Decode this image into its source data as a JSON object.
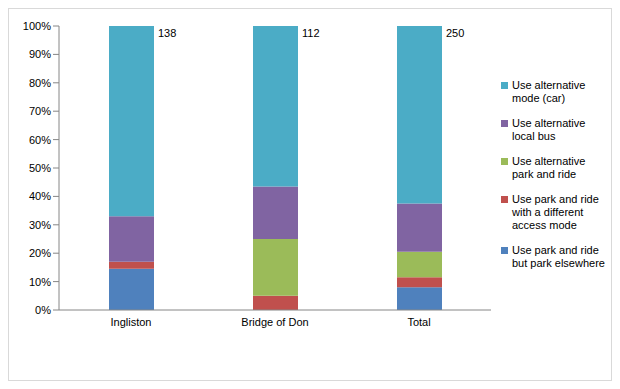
{
  "chart_data": {
    "type": "bar",
    "stacked": true,
    "categories": [
      "Ingliston",
      "Bridge of Don",
      "Total"
    ],
    "sample_sizes": [
      138,
      112,
      250
    ],
    "series": [
      {
        "name": "Use park and ride but park elsewhere",
        "color": "#4f81bd",
        "values": [
          14.5,
          0,
          8
        ]
      },
      {
        "name": "Use park and ride with a different access mode",
        "color": "#c0504d",
        "values": [
          2.5,
          5,
          3.5
        ]
      },
      {
        "name": "Use alternative park and ride",
        "color": "#9bbb59",
        "values": [
          0,
          20,
          9
        ]
      },
      {
        "name": "Use alternative local bus",
        "color": "#8064a2",
        "values": [
          16,
          18.5,
          17
        ]
      },
      {
        "name": "Use alternative mode (car)",
        "color": "#4bacc6",
        "values": [
          67,
          56.5,
          62.5
        ]
      }
    ],
    "ylim": [
      0,
      100
    ],
    "yticks": [
      {
        "value": 0,
        "label": "0%"
      },
      {
        "value": 10,
        "label": "10%"
      },
      {
        "value": 20,
        "label": "20%"
      },
      {
        "value": 30,
        "label": "30%"
      },
      {
        "value": 40,
        "label": "40%"
      },
      {
        "value": 50,
        "label": "50%"
      },
      {
        "value": 60,
        "label": "60%"
      },
      {
        "value": 70,
        "label": "70%"
      },
      {
        "value": 80,
        "label": "80%"
      },
      {
        "value": 90,
        "label": "90%"
      },
      {
        "value": 100,
        "label": "100%"
      }
    ],
    "grid": false
  }
}
